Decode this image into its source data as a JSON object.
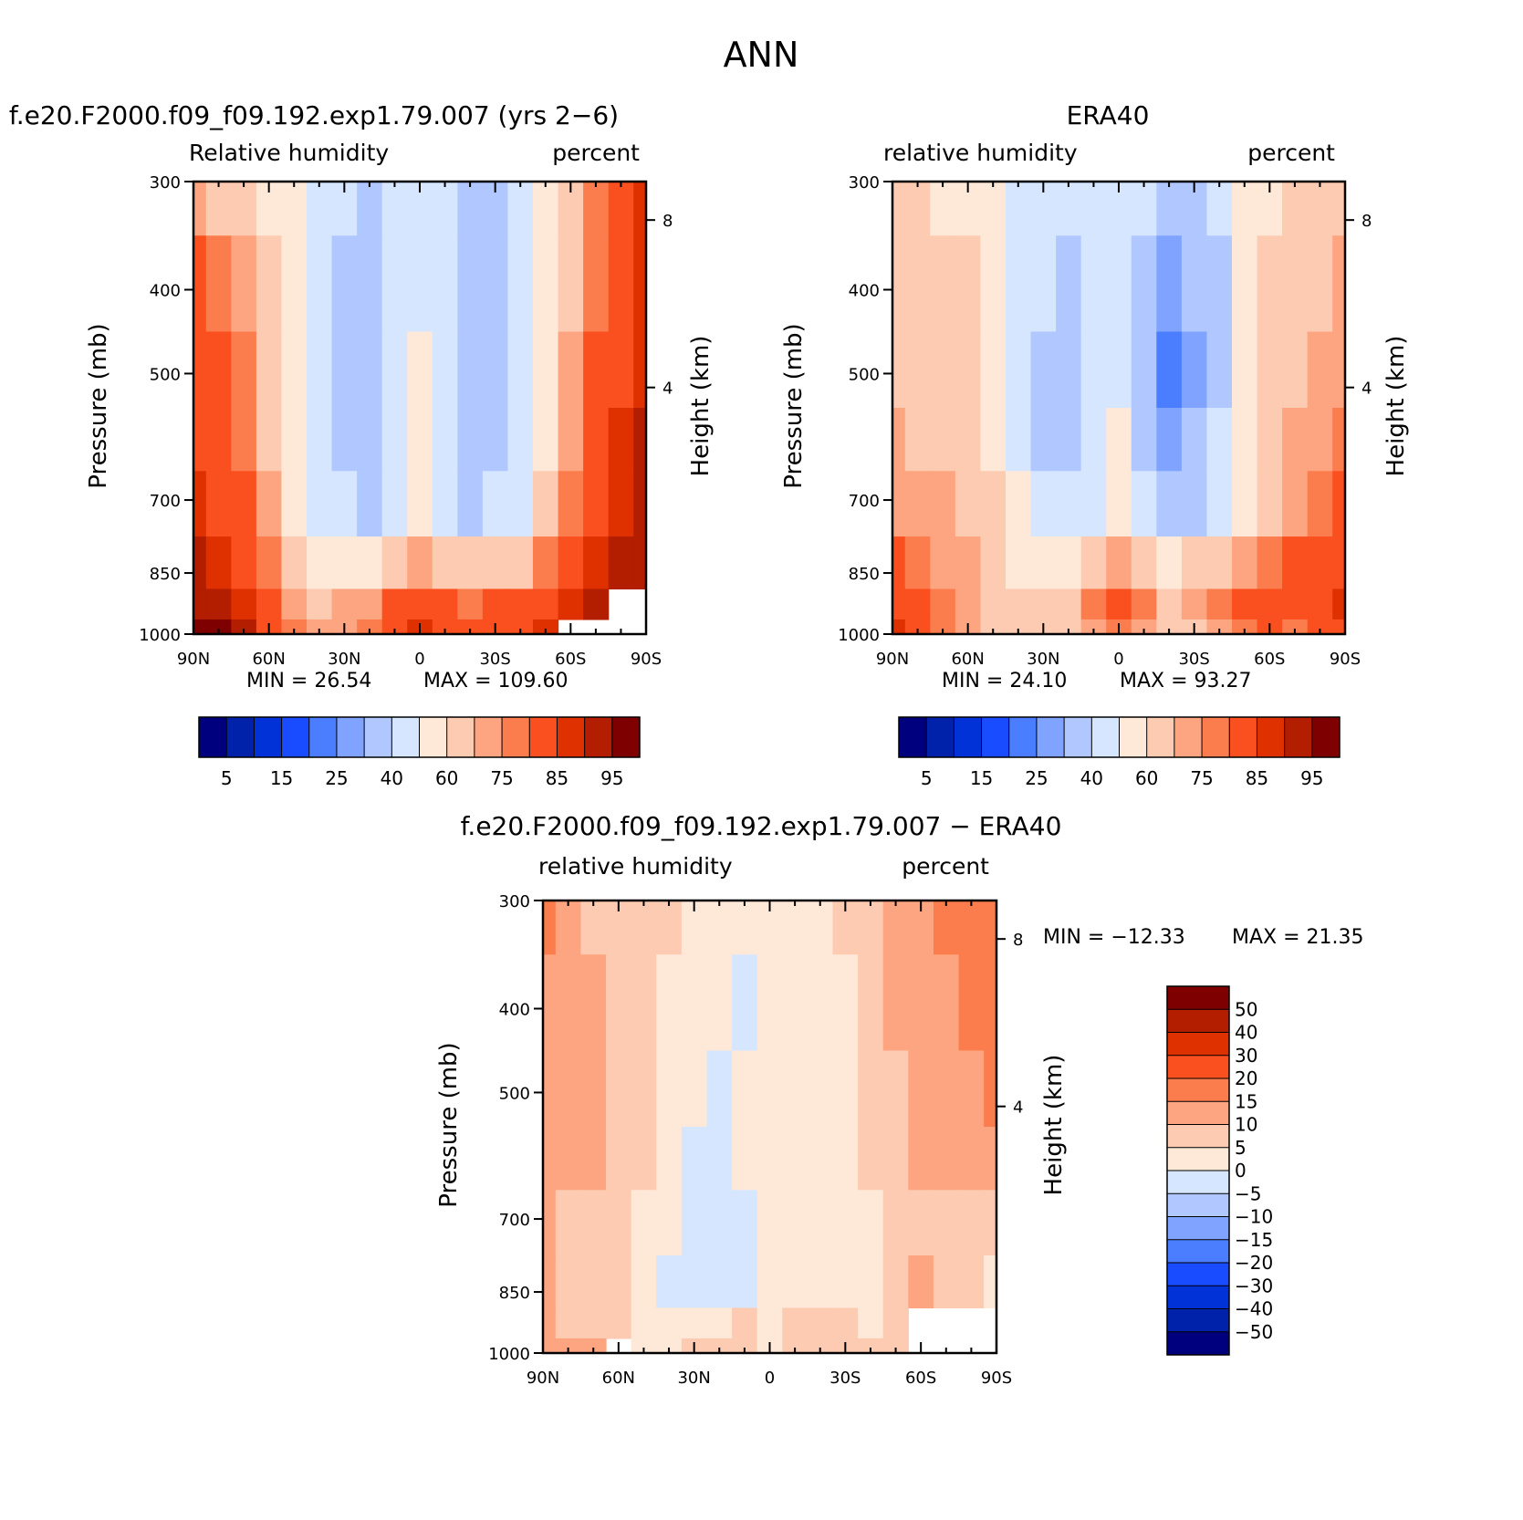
{
  "figure": {
    "title": "ANN",
    "scale_colors": [
      "#00007f",
      "#0022aa",
      "#0032d8",
      "#1a4cff",
      "#4a7dff",
      "#7fa3ff",
      "#b0c8ff",
      "#d6e6ff",
      "#fee9d9",
      "#fdcbb1",
      "#fca580",
      "#fb7c4d",
      "#fa5020",
      "#df3000",
      "#b31d00",
      "#7f0000"
    ]
  },
  "chart_data": [
    {
      "type": "heatmap",
      "id": "model",
      "title": "f.e20.F2000.f09_f09.192.exp1.79.007 (yrs 2−6)",
      "left_label": "Relative humidity",
      "right_label": "percent",
      "ylabel": "Pressure (mb)",
      "ylabel_right": "Height (km)",
      "x_ticks": [
        "90N",
        "60N",
        "30N",
        "0",
        "30S",
        "60S",
        "90S"
      ],
      "y_ticks": [
        "300",
        "400",
        "500",
        "700",
        "850",
        "1000"
      ],
      "height_ticks": [
        "8",
        "4"
      ],
      "min_text": "MIN =   26.54",
      "max_text": "MAX =  109.60",
      "colorbar_labels": [
        "5",
        "15",
        "25",
        "40",
        "60",
        "75",
        "85",
        "95"
      ],
      "lat": [
        90,
        80,
        70,
        60,
        50,
        40,
        30,
        20,
        10,
        0,
        -10,
        -20,
        -30,
        -40,
        -50,
        -60,
        -70,
        -80,
        -90
      ],
      "levels": [
        300,
        400,
        500,
        600,
        700,
        850,
        925,
        1000
      ],
      "values": [
        [
          70,
          68,
          60,
          55,
          50,
          45,
          40,
          38,
          42,
          45,
          40,
          35,
          38,
          45,
          55,
          65,
          75,
          80,
          85
        ],
        [
          80,
          78,
          70,
          60,
          52,
          45,
          38,
          36,
          42,
          48,
          40,
          32,
          34,
          42,
          55,
          68,
          78,
          82,
          88
        ],
        [
          82,
          80,
          75,
          62,
          52,
          44,
          38,
          36,
          42,
          52,
          40,
          32,
          34,
          42,
          56,
          70,
          80,
          84,
          88
        ],
        [
          84,
          82,
          78,
          65,
          54,
          45,
          38,
          37,
          45,
          55,
          42,
          34,
          36,
          44,
          58,
          72,
          82,
          85,
          90
        ],
        [
          86,
          84,
          80,
          70,
          58,
          48,
          40,
          39,
          48,
          58,
          46,
          38,
          40,
          48,
          62,
          75,
          84,
          87,
          92
        ],
        [
          90,
          88,
          84,
          76,
          66,
          58,
          55,
          56,
          65,
          72,
          66,
          60,
          62,
          68,
          78,
          84,
          88,
          90,
          92
        ],
        [
          94,
          90,
          86,
          80,
          72,
          68,
          70,
          74,
          82,
          84,
          82,
          78,
          80,
          80,
          84,
          88,
          92,
          null,
          null
        ],
        [
          98,
          95,
          90,
          84,
          76,
          72,
          74,
          78,
          84,
          86,
          84,
          80,
          80,
          82,
          86,
          null,
          null,
          null,
          null
        ]
      ]
    },
    {
      "type": "heatmap",
      "id": "obs",
      "title": "ERA40",
      "left_label": "relative humidity",
      "right_label": "percent",
      "ylabel": "Pressure (mb)",
      "ylabel_right": "Height (km)",
      "x_ticks": [
        "90N",
        "60N",
        "30N",
        "0",
        "30S",
        "60S",
        "90S"
      ],
      "y_ticks": [
        "300",
        "400",
        "500",
        "700",
        "850",
        "1000"
      ],
      "height_ticks": [
        "8",
        "4"
      ],
      "min_text": "MIN =   24.10",
      "max_text": "MAX =   93.27",
      "colorbar_labels": [
        "5",
        "15",
        "25",
        "40",
        "60",
        "75",
        "85",
        "95"
      ],
      "lat": [
        90,
        80,
        70,
        60,
        50,
        40,
        30,
        20,
        10,
        0,
        -10,
        -20,
        -30,
        -40,
        -50,
        -60,
        -70,
        -80,
        -90
      ],
      "levels": [
        300,
        400,
        500,
        600,
        700,
        850,
        925,
        1000
      ],
      "values": [
        [
          62,
          60,
          58,
          56,
          52,
          48,
          42,
          40,
          42,
          44,
          40,
          32,
          34,
          40,
          52,
          58,
          60,
          62,
          64
        ],
        [
          66,
          64,
          62,
          60,
          55,
          48,
          40,
          38,
          42,
          44,
          36,
          26,
          30,
          38,
          52,
          60,
          64,
          66,
          70
        ],
        [
          68,
          66,
          64,
          62,
          56,
          48,
          38,
          36,
          42,
          46,
          36,
          24,
          28,
          38,
          52,
          62,
          68,
          70,
          74
        ],
        [
          70,
          68,
          66,
          64,
          58,
          48,
          38,
          36,
          44,
          52,
          38,
          26,
          30,
          40,
          54,
          64,
          70,
          74,
          78
        ],
        [
          74,
          72,
          70,
          66,
          60,
          50,
          42,
          40,
          48,
          58,
          44,
          34,
          36,
          44,
          58,
          66,
          74,
          78,
          80
        ],
        [
          80,
          78,
          74,
          70,
          64,
          58,
          56,
          56,
          66,
          72,
          64,
          58,
          60,
          62,
          70,
          76,
          80,
          82,
          84
        ],
        [
          84,
          82,
          78,
          74,
          68,
          62,
          60,
          60,
          76,
          80,
          76,
          64,
          70,
          76,
          80,
          84,
          82,
          84,
          86
        ],
        [
          86,
          82,
          78,
          74,
          68,
          62,
          60,
          60,
          74,
          78,
          74,
          64,
          66,
          72,
          78,
          80,
          78,
          80,
          84
        ]
      ]
    },
    {
      "type": "heatmap",
      "id": "diff",
      "title": "f.e20.F2000.f09_f09.192.exp1.79.007 − ERA40",
      "left_label": "relative humidity",
      "right_label": "percent",
      "ylabel": "Pressure (mb)",
      "ylabel_right": "Height (km)",
      "x_ticks": [
        "90N",
        "60N",
        "30N",
        "0",
        "30S",
        "60S",
        "90S"
      ],
      "y_ticks": [
        "300",
        "400",
        "500",
        "700",
        "850",
        "1000"
      ],
      "height_ticks": [
        "8",
        "4"
      ],
      "min_text": "MIN = −12.33",
      "max_text": "MAX =   21.35",
      "colorbar_labels": [
        "50",
        "40",
        "30",
        "20",
        "15",
        "10",
        "5",
        "0",
        "−5",
        "−10",
        "−15",
        "−20",
        "−30",
        "−40",
        "−50"
      ],
      "lat": [
        90,
        80,
        70,
        60,
        50,
        40,
        30,
        20,
        10,
        0,
        -10,
        -20,
        -30,
        -40,
        -50,
        -60,
        -70,
        -80,
        -90
      ],
      "levels": [
        300,
        400,
        500,
        600,
        700,
        850,
        925,
        1000
      ],
      "values": [
        [
          16,
          12,
          8,
          6,
          7,
          6,
          4,
          3,
          2,
          2,
          3,
          4,
          5,
          8,
          12,
          14,
          16,
          18,
          18
        ],
        [
          14,
          12,
          10,
          7,
          6,
          4,
          3,
          2,
          -2,
          4,
          4,
          4,
          4,
          7,
          10,
          12,
          14,
          16,
          16
        ],
        [
          13,
          12,
          10,
          7,
          5,
          3,
          2,
          -1,
          2,
          4,
          4,
          3,
          4,
          6,
          9,
          11,
          13,
          14,
          15
        ],
        [
          12,
          11,
          10,
          8,
          5,
          2,
          -1,
          -2,
          2,
          3,
          4,
          3,
          3,
          5,
          8,
          10,
          12,
          12,
          12
        ],
        [
          10,
          9,
          9,
          7,
          4,
          1,
          -2,
          -3,
          -1,
          1,
          3,
          3,
          3,
          4,
          6,
          8,
          9,
          8,
          8
        ],
        [
          10,
          9,
          8,
          6,
          3,
          -1,
          -2,
          -3,
          -1,
          1,
          3,
          4,
          3,
          4,
          8,
          10,
          9,
          7,
          1
        ],
        [
          11,
          9,
          8,
          5,
          2,
          2,
          3,
          4,
          5,
          3,
          6,
          8,
          6,
          4,
          8,
          null,
          null,
          null,
          null
        ],
        [
          12,
          12,
          10,
          null,
          4,
          3,
          5,
          7,
          7,
          4,
          6,
          8,
          6,
          6,
          7,
          null,
          null,
          null,
          null
        ]
      ]
    }
  ]
}
